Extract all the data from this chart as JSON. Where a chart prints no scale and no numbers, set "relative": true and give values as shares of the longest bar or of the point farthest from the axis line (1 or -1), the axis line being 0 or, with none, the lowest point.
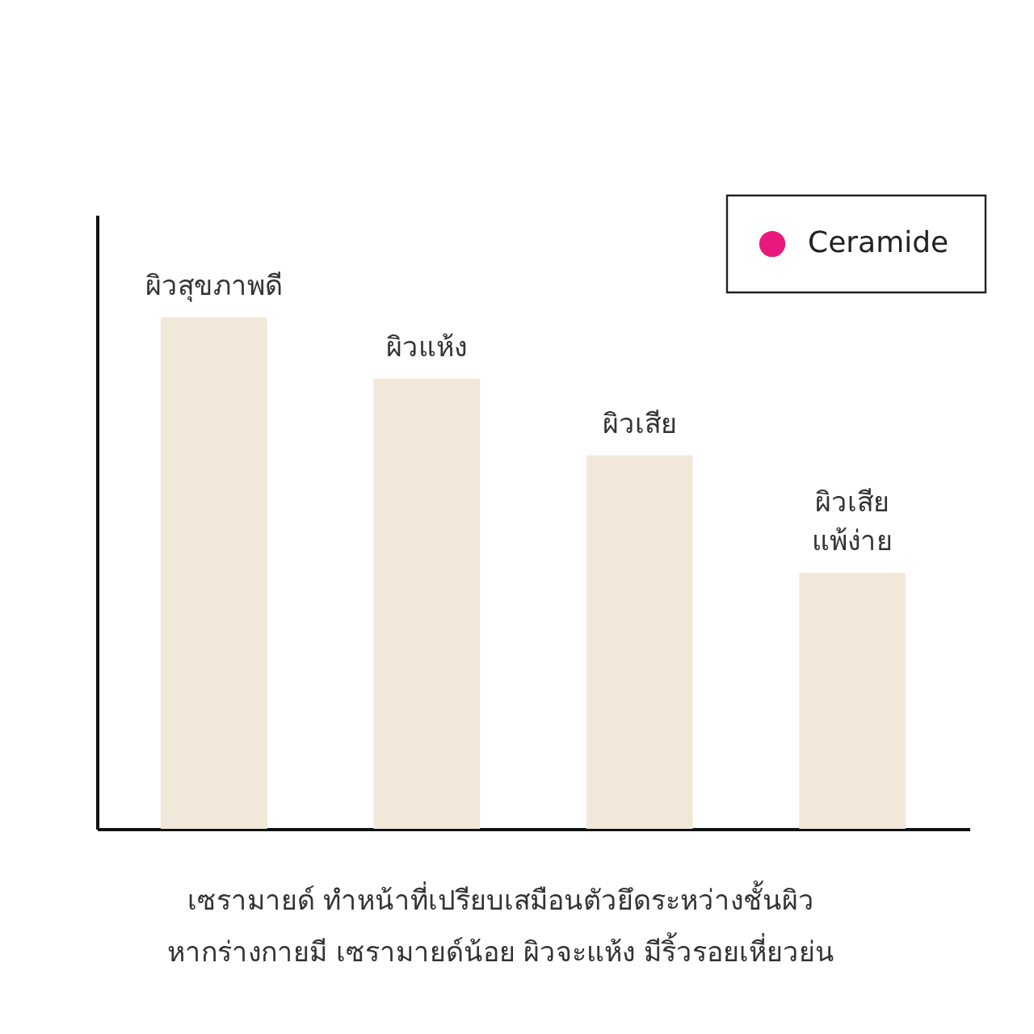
{
  "chart_data": {
    "type": "bar",
    "relative": true,
    "categories": [
      "ผิวสุขภาพดี",
      "ผิวแห้ง",
      "ผิวเสีย",
      "ผิวเสีย\nแพ้ง่าย"
    ],
    "values": [
      1,
      0.88,
      0.73,
      0.5
    ],
    "color": "#f2e8da",
    "annotations": [
      "Ceramide",
      "เซรามายด์ ทำหน้าที่เปรียบเสมือนตัวยึดระหว่างชั้นผิว",
      "หากร่างกายมี เซรามายด์น้อย ผิวจะแห้ง มีริ้วรอยเหี่ยวย่น"
    ]
  }
}
